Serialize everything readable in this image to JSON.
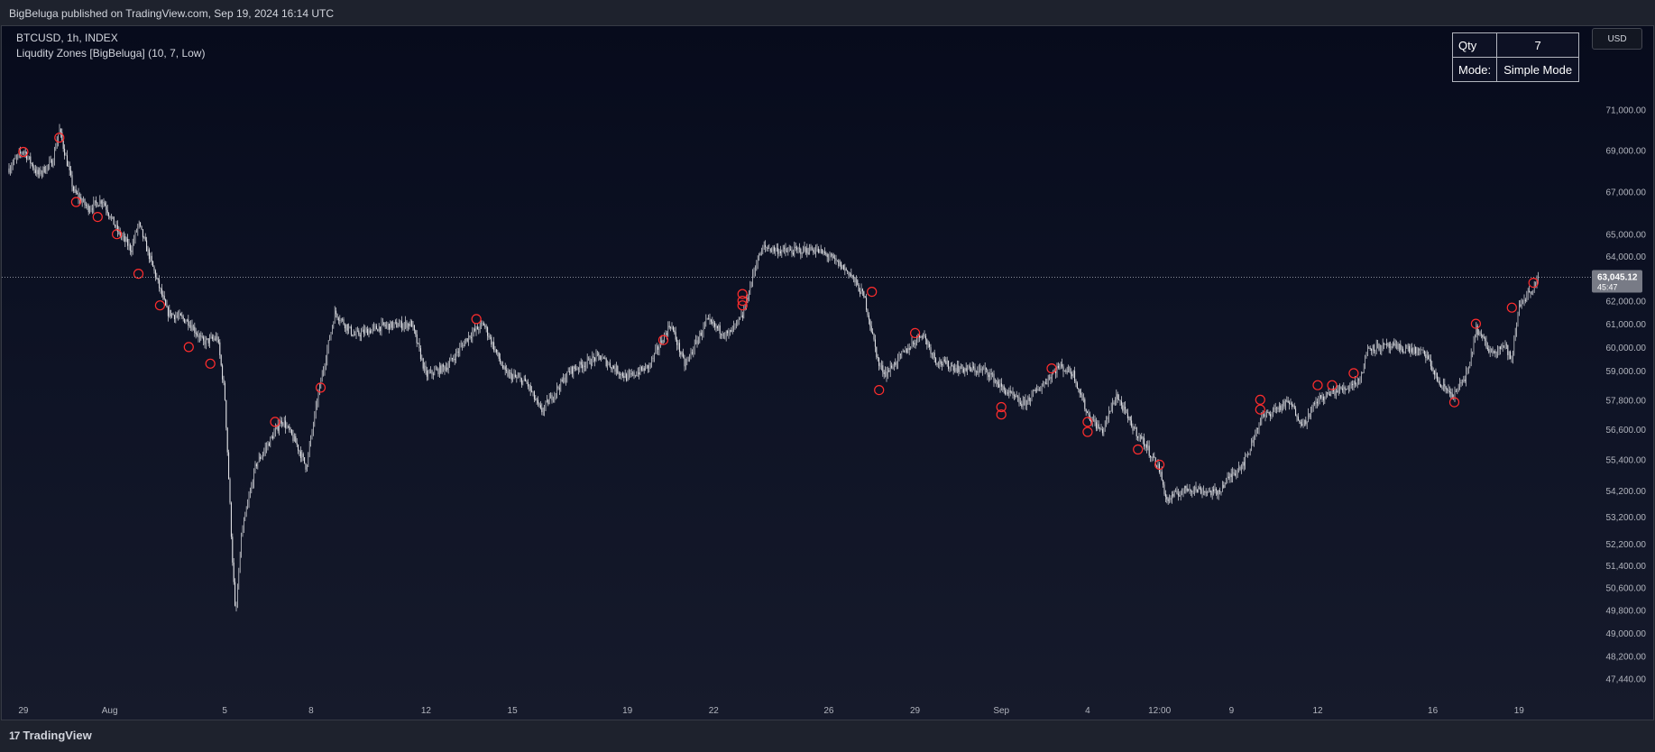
{
  "header": {
    "publish_text": "BigBeluga published on TradingView.com, Sep 19, 2024 16:14 UTC"
  },
  "legend": {
    "symbol_line": "BTCUSD, 1h, INDEX",
    "indicator_line": "Liqudity Zones [BigBeluga] (10, 7, Low)"
  },
  "info_table": {
    "qty_label": "Qty",
    "qty_value": "7",
    "mode_label": "Mode:",
    "mode_value": "Simple Mode"
  },
  "currency_button": "USD",
  "footer": {
    "brand": "TradingView",
    "logo": "17"
  },
  "chart_data": {
    "type": "candlestick",
    "symbol": "BTCUSD",
    "interval": "1h",
    "ylim": [
      46700,
      72400
    ],
    "y_scale": "log",
    "y_ticks": [
      {
        "value": 71000,
        "label": "71,000.00"
      },
      {
        "value": 69000,
        "label": "69,000.00"
      },
      {
        "value": 67000,
        "label": "67,000.00"
      },
      {
        "value": 65000,
        "label": "65,000.00"
      },
      {
        "value": 64000,
        "label": "64,000.00"
      },
      {
        "value": 62000,
        "label": "62,000.00"
      },
      {
        "value": 61000,
        "label": "61,000.00"
      },
      {
        "value": 60000,
        "label": "60,000.00"
      },
      {
        "value": 59000,
        "label": "59,000.00"
      },
      {
        "value": 57800,
        "label": "57,800.00"
      },
      {
        "value": 56600,
        "label": "56,600.00"
      },
      {
        "value": 55400,
        "label": "55,400.00"
      },
      {
        "value": 54200,
        "label": "54,200.00"
      },
      {
        "value": 53200,
        "label": "53,200.00"
      },
      {
        "value": 52200,
        "label": "52,200.00"
      },
      {
        "value": 51400,
        "label": "51,400.00"
      },
      {
        "value": 50600,
        "label": "50,600.00"
      },
      {
        "value": 49800,
        "label": "49,800.00"
      },
      {
        "value": 49000,
        "label": "49,000.00"
      },
      {
        "value": 48200,
        "label": "48,200.00"
      },
      {
        "value": 47440,
        "label": "47,440.00"
      }
    ],
    "x_range": [
      "2024-07-28T12:00",
      "2024-09-21T12:00"
    ],
    "x_ticks": [
      {
        "t": "2024-07-29",
        "label": "29"
      },
      {
        "t": "2024-08-01",
        "label": "Aug"
      },
      {
        "t": "2024-08-05",
        "label": "5"
      },
      {
        "t": "2024-08-08",
        "label": "8"
      },
      {
        "t": "2024-08-12",
        "label": "12"
      },
      {
        "t": "2024-08-15",
        "label": "15"
      },
      {
        "t": "2024-08-19",
        "label": "19"
      },
      {
        "t": "2024-08-22",
        "label": "22"
      },
      {
        "t": "2024-08-26",
        "label": "26"
      },
      {
        "t": "2024-08-29",
        "label": "29"
      },
      {
        "t": "2024-09-01",
        "label": "Sep"
      },
      {
        "t": "2024-09-04",
        "label": "4"
      },
      {
        "t": "2024-09-06T12:00",
        "label": "12:00"
      },
      {
        "t": "2024-09-09",
        "label": "9"
      },
      {
        "t": "2024-09-12",
        "label": "12"
      },
      {
        "t": "2024-09-16",
        "label": "16"
      },
      {
        "t": "2024-09-19",
        "label": "19"
      }
    ],
    "last_price": 63045.12,
    "last_price_label": "63,045.12",
    "countdown_label": "45:47",
    "price_path": [
      {
        "t": "2024-07-28T12:00",
        "p": 68100
      },
      {
        "t": "2024-07-29T00:00",
        "p": 69000
      },
      {
        "t": "2024-07-29T12:00",
        "p": 67800
      },
      {
        "t": "2024-07-30T00:00",
        "p": 68400
      },
      {
        "t": "2024-07-30T06:00",
        "p": 70000
      },
      {
        "t": "2024-07-30T18:00",
        "p": 67000
      },
      {
        "t": "2024-07-31T06:00",
        "p": 66200
      },
      {
        "t": "2024-07-31T18:00",
        "p": 66600
      },
      {
        "t": "2024-08-01T06:00",
        "p": 65200
      },
      {
        "t": "2024-08-01T18:00",
        "p": 64300
      },
      {
        "t": "2024-08-02T00:00",
        "p": 65500
      },
      {
        "t": "2024-08-02T12:00",
        "p": 63500
      },
      {
        "t": "2024-08-03T00:00",
        "p": 61500
      },
      {
        "t": "2024-08-03T18:00",
        "p": 61100
      },
      {
        "t": "2024-08-04T06:00",
        "p": 60200
      },
      {
        "t": "2024-08-04T18:00",
        "p": 60400
      },
      {
        "t": "2024-08-05T00:00",
        "p": 58000
      },
      {
        "t": "2024-08-05T06:00",
        "p": 52000
      },
      {
        "t": "2024-08-05T09:00",
        "p": 49500
      },
      {
        "t": "2024-08-05T14:00",
        "p": 52500
      },
      {
        "t": "2024-08-06T02:00",
        "p": 55200
      },
      {
        "t": "2024-08-06T12:00",
        "p": 56000
      },
      {
        "t": "2024-08-07T00:00",
        "p": 57000
      },
      {
        "t": "2024-08-07T12:00",
        "p": 56000
      },
      {
        "t": "2024-08-07T20:00",
        "p": 55100
      },
      {
        "t": "2024-08-08T06:00",
        "p": 58000
      },
      {
        "t": "2024-08-08T20:00",
        "p": 61500
      },
      {
        "t": "2024-08-09T12:00",
        "p": 60500
      },
      {
        "t": "2024-08-10T12:00",
        "p": 60900
      },
      {
        "t": "2024-08-11T12:00",
        "p": 61000
      },
      {
        "t": "2024-08-12T00:00",
        "p": 58800
      },
      {
        "t": "2024-08-12T18:00",
        "p": 59200
      },
      {
        "t": "2024-08-13T12:00",
        "p": 60500
      },
      {
        "t": "2024-08-14T00:00",
        "p": 61000
      },
      {
        "t": "2024-08-14T18:00",
        "p": 58900
      },
      {
        "t": "2024-08-15T12:00",
        "p": 58500
      },
      {
        "t": "2024-08-16T00:00",
        "p": 57300
      },
      {
        "t": "2024-08-17T00:00",
        "p": 59000
      },
      {
        "t": "2024-08-18T00:00",
        "p": 59600
      },
      {
        "t": "2024-08-19T00:00",
        "p": 58700
      },
      {
        "t": "2024-08-19T18:00",
        "p": 59200
      },
      {
        "t": "2024-08-20T12:00",
        "p": 61000
      },
      {
        "t": "2024-08-21T00:00",
        "p": 59200
      },
      {
        "t": "2024-08-21T18:00",
        "p": 61100
      },
      {
        "t": "2024-08-22T12:00",
        "p": 60500
      },
      {
        "t": "2024-08-23T00:00",
        "p": 61300
      },
      {
        "t": "2024-08-23T12:00",
        "p": 63800
      },
      {
        "t": "2024-08-23T18:00",
        "p": 64400
      },
      {
        "t": "2024-08-24T12:00",
        "p": 64200
      },
      {
        "t": "2024-08-25T12:00",
        "p": 64300
      },
      {
        "t": "2024-08-26T00:00",
        "p": 64000
      },
      {
        "t": "2024-08-26T18:00",
        "p": 63200
      },
      {
        "t": "2024-08-27T06:00",
        "p": 62100
      },
      {
        "t": "2024-08-27T18:00",
        "p": 59200
      },
      {
        "t": "2024-08-28T00:00",
        "p": 58900
      },
      {
        "t": "2024-08-28T12:00",
        "p": 59600
      },
      {
        "t": "2024-08-29T06:00",
        "p": 60600
      },
      {
        "t": "2024-08-29T18:00",
        "p": 59400
      },
      {
        "t": "2024-08-30T12:00",
        "p": 59100
      },
      {
        "t": "2024-08-31T12:00",
        "p": 59000
      },
      {
        "t": "2024-09-01T00:00",
        "p": 58300
      },
      {
        "t": "2024-09-01T18:00",
        "p": 57600
      },
      {
        "t": "2024-09-02T12:00",
        "p": 58500
      },
      {
        "t": "2024-09-03T00:00",
        "p": 59200
      },
      {
        "t": "2024-09-03T12:00",
        "p": 58900
      },
      {
        "t": "2024-09-04T00:00",
        "p": 57200
      },
      {
        "t": "2024-09-04T12:00",
        "p": 56500
      },
      {
        "t": "2024-09-05T00:00",
        "p": 58000
      },
      {
        "t": "2024-09-05T12:00",
        "p": 56800
      },
      {
        "t": "2024-09-06T00:00",
        "p": 56000
      },
      {
        "t": "2024-09-06T12:00",
        "p": 55000
      },
      {
        "t": "2024-09-06T18:00",
        "p": 53800
      },
      {
        "t": "2024-09-07T00:00",
        "p": 54000
      },
      {
        "t": "2024-09-07T12:00",
        "p": 54300
      },
      {
        "t": "2024-09-08T12:00",
        "p": 54100
      },
      {
        "t": "2024-09-09T00:00",
        "p": 54800
      },
      {
        "t": "2024-09-09T12:00",
        "p": 55400
      },
      {
        "t": "2024-09-10T00:00",
        "p": 57000
      },
      {
        "t": "2024-09-10T12:00",
        "p": 57400
      },
      {
        "t": "2024-09-11T00:00",
        "p": 57700
      },
      {
        "t": "2024-09-11T12:00",
        "p": 56800
      },
      {
        "t": "2024-09-12T00:00",
        "p": 57800
      },
      {
        "t": "2024-09-12T12:00",
        "p": 58100
      },
      {
        "t": "2024-09-13T00:00",
        "p": 58300
      },
      {
        "t": "2024-09-13T12:00",
        "p": 58700
      },
      {
        "t": "2024-09-13T18:00",
        "p": 60000
      },
      {
        "t": "2024-09-14T12:00",
        "p": 60000
      },
      {
        "t": "2024-09-15T06:00",
        "p": 59900
      },
      {
        "t": "2024-09-15T18:00",
        "p": 59700
      },
      {
        "t": "2024-09-16T06:00",
        "p": 58400
      },
      {
        "t": "2024-09-16T18:00",
        "p": 58000
      },
      {
        "t": "2024-09-17T06:00",
        "p": 59000
      },
      {
        "t": "2024-09-17T12:00",
        "p": 60800
      },
      {
        "t": "2024-09-18T00:00",
        "p": 59800
      },
      {
        "t": "2024-09-18T12:00",
        "p": 60100
      },
      {
        "t": "2024-09-18T18:00",
        "p": 59400
      },
      {
        "t": "2024-09-19T00:00",
        "p": 61800
      },
      {
        "t": "2024-09-19T12:00",
        "p": 62600
      },
      {
        "t": "2024-09-19T16:00",
        "p": 63045
      }
    ],
    "liquidity_markers": [
      {
        "t": "2024-07-29T00:00",
        "p": 68900
      },
      {
        "t": "2024-07-30T06:00",
        "p": 69600
      },
      {
        "t": "2024-07-30T20:00",
        "p": 66500
      },
      {
        "t": "2024-07-31T14:00",
        "p": 65800
      },
      {
        "t": "2024-08-01T06:00",
        "p": 65000
      },
      {
        "t": "2024-08-02T00:00",
        "p": 63200
      },
      {
        "t": "2024-08-02T18:00",
        "p": 61800
      },
      {
        "t": "2024-08-03T18:00",
        "p": 60000
      },
      {
        "t": "2024-08-04T12:00",
        "p": 59300
      },
      {
        "t": "2024-08-06T18:00",
        "p": 56900
      },
      {
        "t": "2024-08-08T08:00",
        "p": 58300
      },
      {
        "t": "2024-08-13T18:00",
        "p": 61200
      },
      {
        "t": "2024-08-20T06:00",
        "p": 60300
      },
      {
        "t": "2024-08-23T00:00",
        "p": 62300
      },
      {
        "t": "2024-08-23T00:00",
        "p": 62000
      },
      {
        "t": "2024-08-23T00:00",
        "p": 61800
      },
      {
        "t": "2024-08-27T12:00",
        "p": 62400
      },
      {
        "t": "2024-08-27T18:00",
        "p": 58200
      },
      {
        "t": "2024-08-29T00:00",
        "p": 60600
      },
      {
        "t": "2024-09-01T00:00",
        "p": 57500
      },
      {
        "t": "2024-09-01T00:00",
        "p": 57200
      },
      {
        "t": "2024-09-02T18:00",
        "p": 59100
      },
      {
        "t": "2024-09-04T00:00",
        "p": 56900
      },
      {
        "t": "2024-09-04T00:00",
        "p": 56500
      },
      {
        "t": "2024-09-05T18:00",
        "p": 55800
      },
      {
        "t": "2024-09-06T12:00",
        "p": 55200
      },
      {
        "t": "2024-09-10T00:00",
        "p": 57800
      },
      {
        "t": "2024-09-10T00:00",
        "p": 57400
      },
      {
        "t": "2024-09-12T00:00",
        "p": 58400
      },
      {
        "t": "2024-09-12T12:00",
        "p": 58400
      },
      {
        "t": "2024-09-13T06:00",
        "p": 58900
      },
      {
        "t": "2024-09-16T18:00",
        "p": 57700
      },
      {
        "t": "2024-09-17T12:00",
        "p": 61000
      },
      {
        "t": "2024-09-18T18:00",
        "p": 61700
      },
      {
        "t": "2024-09-19T12:00",
        "p": 62800
      }
    ],
    "colors": {
      "candle": "#e8e9ed",
      "marker": "#ff2d2d",
      "last_price_line": "#8a8e99",
      "axis_text": "#b2b5be",
      "price_label_bg": "#787b86"
    }
  }
}
